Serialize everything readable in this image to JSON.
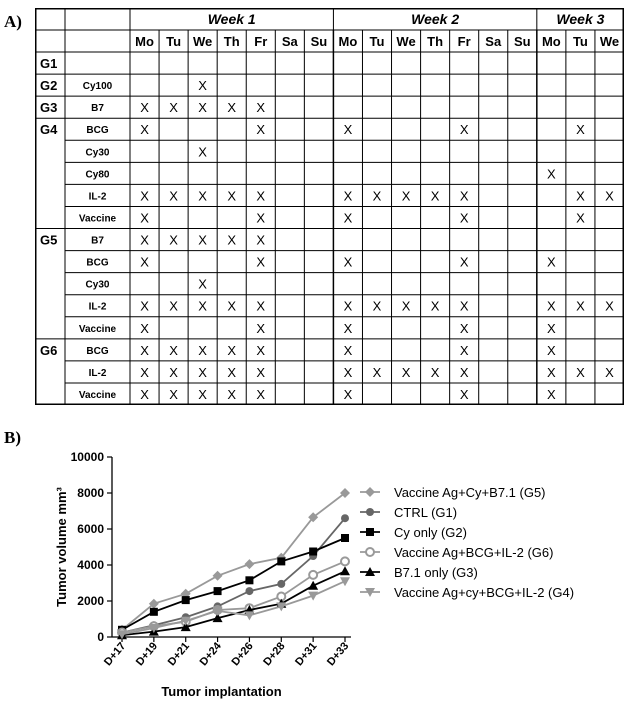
{
  "panel_a": {
    "label": "A)",
    "weeks": [
      "Week 1",
      "Week 2",
      "Week 3"
    ],
    "days": [
      "Mo",
      "Tu",
      "We",
      "Th",
      "Fr",
      "Sa",
      "Su",
      "Mo",
      "Tu",
      "We",
      "Th",
      "Fr",
      "Sa",
      "Su",
      "Mo",
      "Tu",
      "We"
    ],
    "mark": "X",
    "groups": [
      {
        "name": "G1",
        "rows": [
          {
            "agent": "",
            "days": []
          }
        ]
      },
      {
        "name": "G2",
        "rows": [
          {
            "agent": "Cy100",
            "days": [
              2
            ]
          }
        ]
      },
      {
        "name": "G3",
        "rows": [
          {
            "agent": "B7",
            "days": [
              0,
              1,
              2,
              3,
              4
            ]
          }
        ]
      },
      {
        "name": "G4",
        "rows": [
          {
            "agent": "BCG",
            "days": [
              0,
              4,
              7,
              11,
              15
            ]
          },
          {
            "agent": "Cy30",
            "days": [
              2
            ]
          },
          {
            "agent": "Cy80",
            "days": [
              14
            ]
          },
          {
            "agent": "IL-2",
            "days": [
              0,
              1,
              2,
              3,
              4,
              7,
              8,
              9,
              10,
              11,
              15,
              16
            ]
          },
          {
            "agent": "Vaccine",
            "days": [
              0,
              4,
              7,
              11,
              15
            ]
          }
        ]
      },
      {
        "name": "G5",
        "rows": [
          {
            "agent": "B7",
            "days": [
              0,
              1,
              2,
              3,
              4
            ]
          },
          {
            "agent": "BCG",
            "days": [
              0,
              4,
              7,
              11,
              14
            ]
          },
          {
            "agent": "Cy30",
            "days": [
              2
            ]
          },
          {
            "agent": "IL-2",
            "days": [
              0,
              1,
              2,
              3,
              4,
              7,
              8,
              9,
              10,
              11,
              14,
              15,
              16
            ]
          },
          {
            "agent": "Vaccine",
            "days": [
              0,
              4,
              7,
              11,
              14
            ]
          }
        ]
      },
      {
        "name": "G6",
        "rows": [
          {
            "agent": "BCG",
            "days": [
              0,
              1,
              2,
              3,
              4,
              7,
              11,
              14
            ]
          },
          {
            "agent": "IL-2",
            "days": [
              0,
              1,
              2,
              3,
              4,
              7,
              8,
              9,
              10,
              11,
              14,
              15,
              16
            ]
          },
          {
            "agent": "Vaccine",
            "days": [
              0,
              1,
              2,
              3,
              4,
              7,
              11,
              14
            ]
          }
        ]
      }
    ]
  },
  "panel_b": {
    "label": "B)"
  },
  "chart_data": {
    "type": "line",
    "title": "",
    "xlabel": "Tumor implantation",
    "ylabel": "Tumor volume mm³",
    "categories": [
      "D+17",
      "D+19",
      "D+21",
      "D+24",
      "D+26",
      "D+28",
      "D+31",
      "D+33"
    ],
    "ylim": [
      0,
      10000
    ],
    "yticks": [
      0,
      2000,
      4000,
      6000,
      8000,
      10000
    ],
    "legend_position": "right",
    "grid": false,
    "series": [
      {
        "name": "Vaccine Ag+Cy+B7.1 (G5)",
        "color": "#999999",
        "marker": "diamond",
        "values": [
          400,
          1850,
          2400,
          3400,
          4050,
          4400,
          6650,
          8000
        ]
      },
      {
        "name": "CTRL (G1)",
        "color": "#666666",
        "marker": "circle",
        "values": [
          250,
          650,
          1100,
          1700,
          2550,
          2950,
          4500,
          6600
        ]
      },
      {
        "name": "Cy only (G2)",
        "color": "#000000",
        "marker": "square",
        "values": [
          400,
          1400,
          2050,
          2550,
          3150,
          4200,
          4750,
          5500
        ]
      },
      {
        "name": "Vaccine Ag+BCG+IL-2 (G6)",
        "color": "#999999",
        "marker": "open-circle",
        "values": [
          250,
          600,
          850,
          1500,
          1600,
          2250,
          3450,
          4200
        ]
      },
      {
        "name": "B7.1 only (G3)",
        "color": "#000000",
        "marker": "triangle-up",
        "values": [
          100,
          300,
          550,
          1050,
          1500,
          1850,
          2850,
          3650
        ]
      },
      {
        "name": "Vaccine Ag+cy+BCG+IL-2 (G4)",
        "color": "#999999",
        "marker": "triangle-down",
        "values": [
          150,
          500,
          900,
          1450,
          1200,
          1700,
          2300,
          3100
        ]
      }
    ]
  }
}
